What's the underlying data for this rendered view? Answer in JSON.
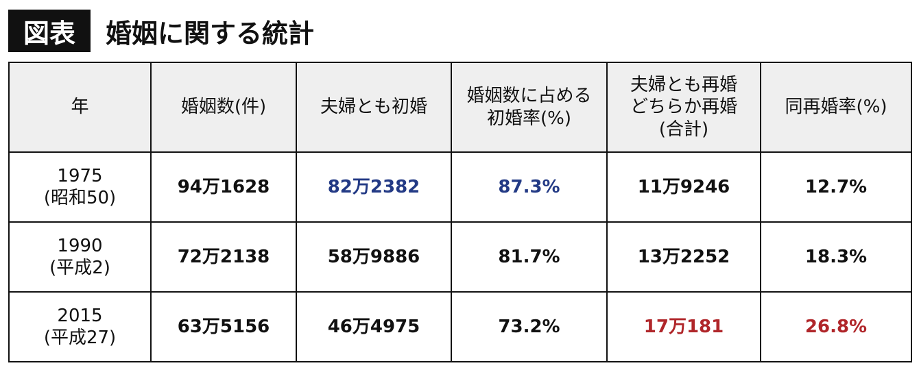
{
  "header": {
    "badge": "図表",
    "title": "婚姻に関する統計"
  },
  "colors": {
    "highlight_blue": "#233a85",
    "highlight_red": "#b0262a",
    "header_bg": "#efefef"
  },
  "chart_data": {
    "type": "table",
    "title": "婚姻に関する統計",
    "columns": [
      "年",
      "婚姻数(件)",
      "夫婦とも初婚",
      "婚姻数に占める\n初婚率(%)",
      "夫婦とも再婚\nどちらか再婚\n(合計)",
      "同再婚率(%)"
    ],
    "rows": [
      [
        "1975\n(昭和50)",
        "94万1628",
        "82万2382",
        "87.3%",
        "11万9246",
        "12.7%"
      ],
      [
        "1990\n(平成2)",
        "72万2138",
        "58万9886",
        "81.7%",
        "13万2252",
        "18.3%"
      ],
      [
        "2015\n(平成27)",
        "63万5156",
        "46万4975",
        "73.2%",
        "17万181",
        "26.8%"
      ]
    ],
    "highlights": {
      "blue": [
        [
          0,
          2
        ],
        [
          0,
          3
        ]
      ],
      "red": [
        [
          2,
          4
        ],
        [
          2,
          5
        ]
      ]
    }
  }
}
